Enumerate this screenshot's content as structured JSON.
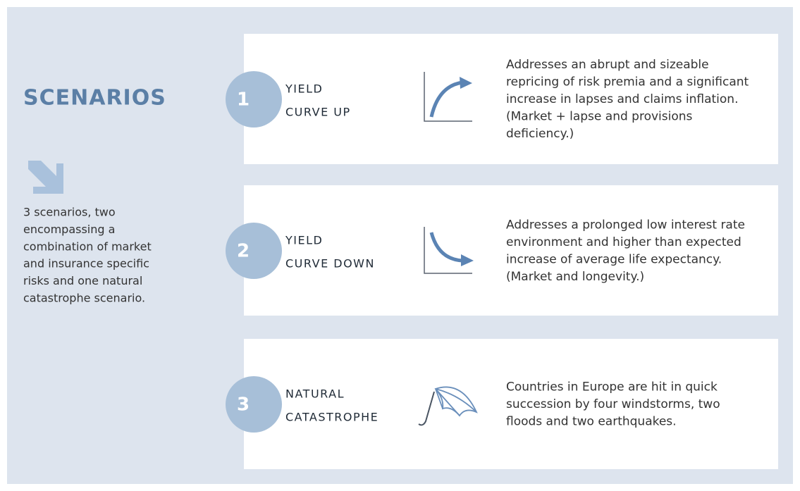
{
  "header": {
    "title": "SCENARIOS"
  },
  "sidebar": {
    "lines": [
      "3 scenarios, two",
      "encompassing a",
      "combination of market",
      "and insurance specific",
      "risks and one natural",
      "catastrophe scenario."
    ]
  },
  "scenarios": [
    {
      "number": "1",
      "title": [
        "YIELD",
        "CURVE UP"
      ],
      "description": [
        "Addresses an abrupt and sizeable",
        "repricing of risk premia and a significant",
        "increase in lapses and claims inflation.",
        "(Market + lapse and provisions",
        "deficiency.)"
      ]
    },
    {
      "number": "2",
      "title": [
        "YIELD",
        "CURVE DOWN"
      ],
      "description": [
        "Addresses a prolonged low interest rate",
        "environment and higher than expected",
        "increase of average life expectancy.",
        "(Market and longevity.)"
      ]
    },
    {
      "number": "3",
      "title": [
        "NATURAL",
        "CATASTROPHE"
      ],
      "description": [
        "Countries in Europe are hit in quick",
        "succession by four windstorms, two",
        "floods and two earthquakes."
      ]
    }
  ]
}
